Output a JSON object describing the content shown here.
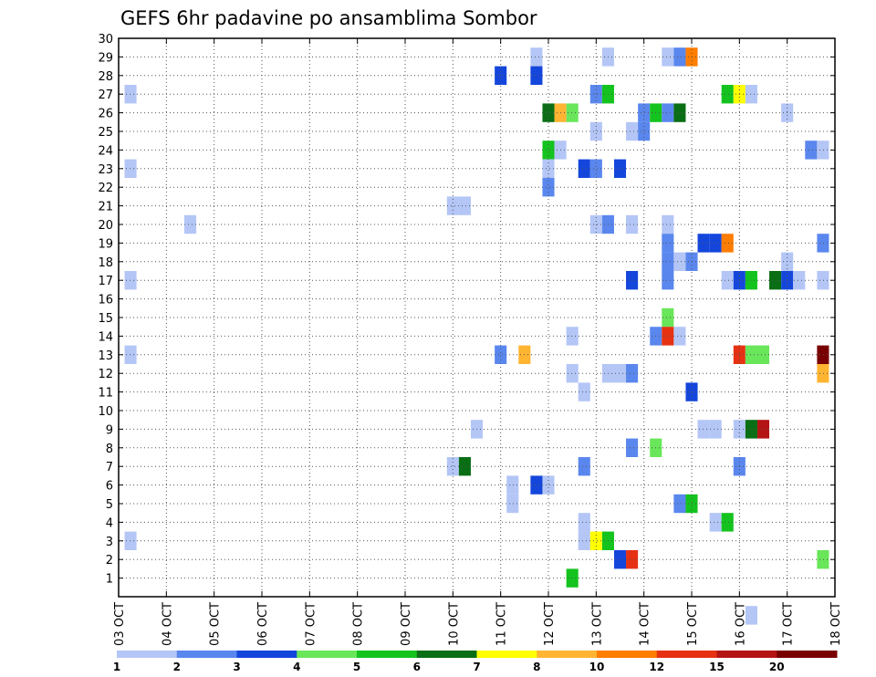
{
  "chart_data": {
    "type": "heatmap",
    "title": "GEFS 6hr padavine po ansamblima Sombor",
    "y_ticks": [
      "1",
      "2",
      "3",
      "4",
      "5",
      "6",
      "7",
      "8",
      "9",
      "10",
      "11",
      "12",
      "13",
      "14",
      "15",
      "16",
      "17",
      "18",
      "19",
      "20",
      "21",
      "22",
      "23",
      "24",
      "25",
      "26",
      "27",
      "28",
      "29",
      "30"
    ],
    "x_ticks": [
      "03 OCT",
      "04 OCT",
      "05 OCT",
      "06 OCT",
      "07 OCT",
      "08 OCT",
      "09 OCT",
      "10 OCT",
      "11 OCT",
      "12 OCT",
      "13 OCT",
      "14 OCT",
      "15 OCT",
      "16 OCT",
      "17 OCT",
      "18 OCT"
    ],
    "x_range": [
      0,
      15
    ],
    "y_range": [
      0,
      30
    ],
    "grid": true,
    "colorbar": {
      "labels": [
        "1",
        "2",
        "3",
        "4",
        "5",
        "6",
        "7",
        "8",
        "10",
        "12",
        "15",
        "20"
      ],
      "colors": [
        "#b4c6f6",
        "#5a87ee",
        "#1446dc",
        "#69e65a",
        "#14c31e",
        "#0a6e14",
        "#ffff00",
        "#ffb432",
        "#ff7d00",
        "#e63212",
        "#b41414",
        "#780000"
      ]
    },
    "cells": [
      {
        "t": 0.25,
        "m": 27,
        "c": 0
      },
      {
        "t": 0.25,
        "m": 23,
        "c": 0
      },
      {
        "t": 0.25,
        "m": 17,
        "c": 0
      },
      {
        "t": 0.25,
        "m": 13,
        "c": 0
      },
      {
        "t": 0.25,
        "m": 3,
        "c": 0
      },
      {
        "t": 1.5,
        "m": 20,
        "c": 0
      },
      {
        "t": 7.0,
        "m": 21,
        "c": 0
      },
      {
        "t": 7.25,
        "m": 21,
        "c": 0
      },
      {
        "t": 7.0,
        "m": 7,
        "c": 0
      },
      {
        "t": 7.25,
        "m": 7,
        "c": 5
      },
      {
        "t": 7.5,
        "m": 9,
        "c": 0
      },
      {
        "t": 8.0,
        "m": 28,
        "c": 2
      },
      {
        "t": 8.0,
        "m": 13,
        "c": 1
      },
      {
        "t": 8.25,
        "m": 6,
        "c": 0
      },
      {
        "t": 8.25,
        "m": 5,
        "c": 0
      },
      {
        "t": 8.5,
        "m": 13,
        "c": 7
      },
      {
        "t": 8.75,
        "m": 29,
        "c": 0
      },
      {
        "t": 8.75,
        "m": 28,
        "c": 2
      },
      {
        "t": 8.75,
        "m": 6,
        "c": 2
      },
      {
        "t": 9.0,
        "m": 26,
        "c": 5
      },
      {
        "t": 9.0,
        "m": 24,
        "c": 4
      },
      {
        "t": 9.0,
        "m": 23,
        "c": 0
      },
      {
        "t": 9.0,
        "m": 22,
        "c": 1
      },
      {
        "t": 9.0,
        "m": 6,
        "c": 0
      },
      {
        "t": 9.25,
        "m": 26,
        "c": 7
      },
      {
        "t": 9.25,
        "m": 24,
        "c": 0
      },
      {
        "t": 9.5,
        "m": 26,
        "c": 3
      },
      {
        "t": 9.5,
        "m": 14,
        "c": 0
      },
      {
        "t": 9.5,
        "m": 12,
        "c": 0
      },
      {
        "t": 9.5,
        "m": 1,
        "c": 4
      },
      {
        "t": 9.75,
        "m": 23,
        "c": 2
      },
      {
        "t": 9.75,
        "m": 11,
        "c": 0
      },
      {
        "t": 9.75,
        "m": 7,
        "c": 1
      },
      {
        "t": 9.75,
        "m": 4,
        "c": 0
      },
      {
        "t": 9.75,
        "m": 3,
        "c": 0
      },
      {
        "t": 10.0,
        "m": 27,
        "c": 1
      },
      {
        "t": 10.0,
        "m": 25,
        "c": 0
      },
      {
        "t": 10.0,
        "m": 23,
        "c": 1
      },
      {
        "t": 10.0,
        "m": 20,
        "c": 0
      },
      {
        "t": 10.0,
        "m": 3,
        "c": 6
      },
      {
        "t": 10.25,
        "m": 29,
        "c": 0
      },
      {
        "t": 10.25,
        "m": 27,
        "c": 4
      },
      {
        "t": 10.25,
        "m": 20,
        "c": 1
      },
      {
        "t": 10.25,
        "m": 12,
        "c": 0
      },
      {
        "t": 10.25,
        "m": 3,
        "c": 4
      },
      {
        "t": 10.5,
        "m": 23,
        "c": 2
      },
      {
        "t": 10.5,
        "m": 12,
        "c": 0
      },
      {
        "t": 10.5,
        "m": 2,
        "c": 2
      },
      {
        "t": 10.75,
        "m": 25,
        "c": 0
      },
      {
        "t": 10.75,
        "m": 20,
        "c": 0
      },
      {
        "t": 10.75,
        "m": 17,
        "c": 2
      },
      {
        "t": 10.75,
        "m": 12,
        "c": 1
      },
      {
        "t": 10.75,
        "m": 8,
        "c": 1
      },
      {
        "t": 10.75,
        "m": 2,
        "c": 9
      },
      {
        "t": 11.0,
        "m": 26,
        "c": 1
      },
      {
        "t": 11.0,
        "m": 25,
        "c": 1
      },
      {
        "t": 11.25,
        "m": 26,
        "c": 4
      },
      {
        "t": 11.25,
        "m": 14,
        "c": 1
      },
      {
        "t": 11.25,
        "m": 8,
        "c": 3
      },
      {
        "t": 11.5,
        "m": 29,
        "c": 0
      },
      {
        "t": 11.5,
        "m": 26,
        "c": 1
      },
      {
        "t": 11.5,
        "m": 20,
        "c": 0
      },
      {
        "t": 11.5,
        "m": 19,
        "c": 1
      },
      {
        "t": 11.5,
        "m": 18,
        "c": 1
      },
      {
        "t": 11.5,
        "m": 17,
        "c": 1
      },
      {
        "t": 11.5,
        "m": 15,
        "c": 3
      },
      {
        "t": 11.5,
        "m": 14,
        "c": 9
      },
      {
        "t": 11.75,
        "m": 29,
        "c": 1
      },
      {
        "t": 11.75,
        "m": 26,
        "c": 5
      },
      {
        "t": 11.75,
        "m": 18,
        "c": 0
      },
      {
        "t": 11.75,
        "m": 14,
        "c": 0
      },
      {
        "t": 11.75,
        "m": 5,
        "c": 1
      },
      {
        "t": 12.0,
        "m": 29,
        "c": 8
      },
      {
        "t": 12.0,
        "m": 18,
        "c": 1
      },
      {
        "t": 12.0,
        "m": 11,
        "c": 2
      },
      {
        "t": 12.0,
        "m": 5,
        "c": 4
      },
      {
        "t": 12.25,
        "m": 19,
        "c": 2
      },
      {
        "t": 12.25,
        "m": 9,
        "c": 0
      },
      {
        "t": 12.5,
        "m": 19,
        "c": 2
      },
      {
        "t": 12.5,
        "m": 9,
        "c": 0
      },
      {
        "t": 12.5,
        "m": 4,
        "c": 0
      },
      {
        "t": 12.75,
        "m": 27,
        "c": 4
      },
      {
        "t": 12.75,
        "m": 19,
        "c": 8
      },
      {
        "t": 12.75,
        "m": 17,
        "c": 0
      },
      {
        "t": 12.75,
        "m": 4,
        "c": 4
      },
      {
        "t": 13.0,
        "m": 27,
        "c": 6
      },
      {
        "t": 13.0,
        "m": 17,
        "c": 2
      },
      {
        "t": 13.0,
        "m": 13,
        "c": 9
      },
      {
        "t": 13.0,
        "m": 9,
        "c": 0
      },
      {
        "t": 13.0,
        "m": 7,
        "c": 1
      },
      {
        "t": 13.25,
        "m": 27,
        "c": 0
      },
      {
        "t": 13.25,
        "m": 17,
        "c": 4
      },
      {
        "t": 13.25,
        "m": 13,
        "c": 3
      },
      {
        "t": 13.25,
        "m": 9,
        "c": 5
      },
      {
        "t": 13.25,
        "m": -1,
        "c": 0
      },
      {
        "t": 13.5,
        "m": 13,
        "c": 3
      },
      {
        "t": 13.5,
        "m": 9,
        "c": 10
      },
      {
        "t": 13.75,
        "m": 17,
        "c": 5
      },
      {
        "t": 14.0,
        "m": 26,
        "c": 0
      },
      {
        "t": 14.0,
        "m": 18,
        "c": 0
      },
      {
        "t": 14.0,
        "m": 17,
        "c": 2
      },
      {
        "t": 14.25,
        "m": 17,
        "c": 0
      },
      {
        "t": 14.5,
        "m": 24,
        "c": 1
      },
      {
        "t": 14.75,
        "m": 24,
        "c": 0
      },
      {
        "t": 14.75,
        "m": 19,
        "c": 1
      },
      {
        "t": 14.75,
        "m": 17,
        "c": 0
      },
      {
        "t": 14.75,
        "m": 13,
        "c": 11
      },
      {
        "t": 14.75,
        "m": 12,
        "c": 7
      },
      {
        "t": 14.75,
        "m": 2,
        "c": 3
      }
    ]
  }
}
